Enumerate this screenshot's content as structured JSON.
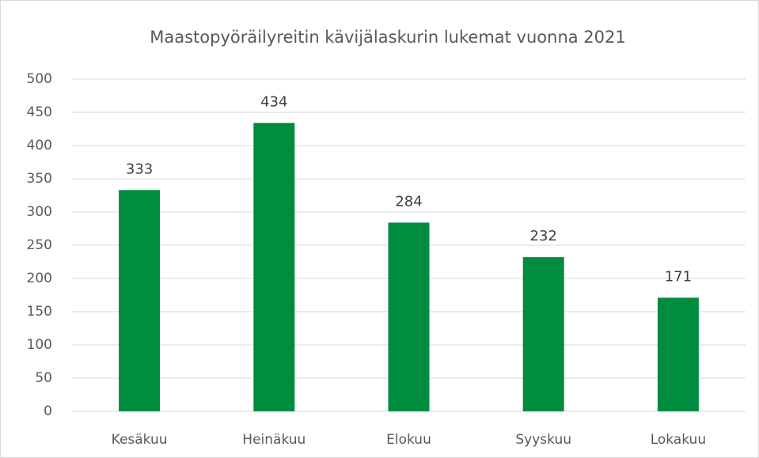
{
  "chart_data": {
    "type": "bar",
    "title": "Maastopyöräilyreitin kävijälaskurin lukemat vuonna 2021",
    "categories": [
      "Kesäkuu",
      "Heinäkuu",
      "Elokuu",
      "Syyskuu",
      "Lokakuu"
    ],
    "values": [
      333,
      434,
      284,
      232,
      171
    ],
    "color": "#008c3e",
    "ylim": [
      0,
      500
    ],
    "yticks": [
      0,
      50,
      100,
      150,
      200,
      250,
      300,
      350,
      400,
      450,
      500
    ],
    "grid": true
  }
}
